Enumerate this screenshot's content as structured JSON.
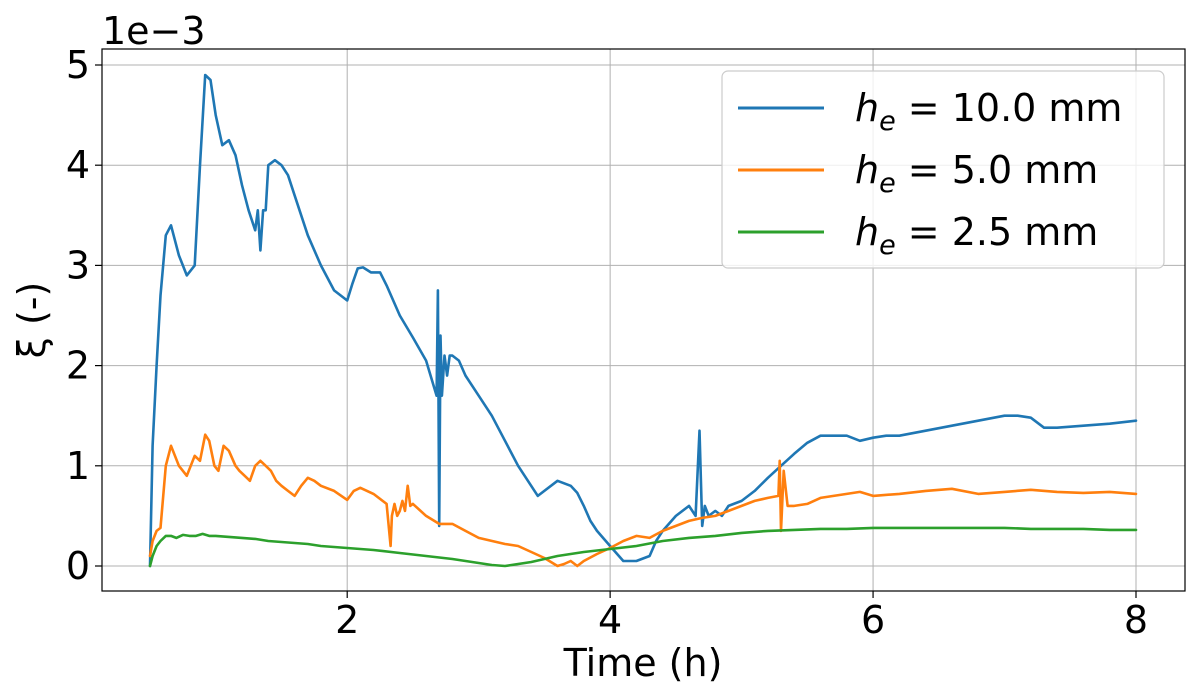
{
  "chart_data": {
    "type": "line",
    "title": "",
    "xlabel": "Time (h)",
    "ylabel": "ξ (-)",
    "offset_label": "1e−3",
    "xlim": [
      0.5,
      8.0
    ],
    "ylim": [
      0,
      5
    ],
    "xticks": [
      2,
      4,
      6,
      8
    ],
    "yticks": [
      0,
      1,
      2,
      3,
      4,
      5
    ],
    "grid": true,
    "legend_position": "top-right",
    "series": [
      {
        "name": "h_e = 10.0 mm",
        "legend_var": "h",
        "legend_sub": "e",
        "legend_rest": " = 10.0 mm",
        "color": "#1f77b4",
        "x": [
          0.5,
          0.52,
          0.55,
          0.58,
          0.62,
          0.66,
          0.72,
          0.78,
          0.84,
          0.88,
          0.92,
          0.96,
          1.0,
          1.05,
          1.1,
          1.15,
          1.2,
          1.25,
          1.3,
          1.32,
          1.34,
          1.36,
          1.38,
          1.4,
          1.45,
          1.5,
          1.55,
          1.6,
          1.7,
          1.8,
          1.9,
          2.0,
          2.04,
          2.08,
          2.12,
          2.18,
          2.25,
          2.3,
          2.4,
          2.5,
          2.6,
          2.68,
          2.69,
          2.7,
          2.71,
          2.72,
          2.74,
          2.76,
          2.78,
          2.8,
          2.85,
          2.9,
          3.0,
          3.1,
          3.2,
          3.3,
          3.45,
          3.6,
          3.7,
          3.75,
          3.8,
          3.85,
          3.9,
          4.0,
          4.1,
          4.2,
          4.3,
          4.35,
          4.4,
          4.5,
          4.6,
          4.65,
          4.68,
          4.7,
          4.72,
          4.75,
          4.8,
          4.85,
          4.9,
          5.0,
          5.1,
          5.2,
          5.3,
          5.4,
          5.5,
          5.6,
          5.7,
          5.8,
          5.9,
          6.0,
          6.1,
          6.2,
          6.4,
          6.6,
          6.8,
          7.0,
          7.1,
          7.2,
          7.3,
          7.4,
          7.6,
          7.8,
          8.0
        ],
        "y": [
          0.0,
          1.2,
          2.0,
          2.7,
          3.3,
          3.4,
          3.1,
          2.9,
          3.0,
          4.0,
          4.9,
          4.85,
          4.5,
          4.2,
          4.25,
          4.1,
          3.8,
          3.55,
          3.35,
          3.55,
          3.15,
          3.55,
          3.55,
          4.0,
          4.05,
          4.0,
          3.9,
          3.7,
          3.3,
          3.0,
          2.75,
          2.65,
          2.82,
          2.97,
          2.98,
          2.93,
          2.93,
          2.8,
          2.5,
          2.28,
          2.05,
          1.7,
          2.75,
          0.4,
          2.3,
          1.7,
          2.1,
          1.9,
          2.1,
          2.1,
          2.05,
          1.9,
          1.7,
          1.5,
          1.25,
          1.0,
          0.7,
          0.85,
          0.8,
          0.73,
          0.6,
          0.45,
          0.35,
          0.2,
          0.05,
          0.05,
          0.1,
          0.25,
          0.35,
          0.5,
          0.6,
          0.5,
          1.35,
          0.4,
          0.6,
          0.5,
          0.55,
          0.5,
          0.6,
          0.65,
          0.75,
          0.88,
          1.0,
          1.12,
          1.23,
          1.3,
          1.3,
          1.3,
          1.25,
          1.28,
          1.3,
          1.3,
          1.35,
          1.4,
          1.45,
          1.5,
          1.5,
          1.48,
          1.38,
          1.38,
          1.4,
          1.42,
          1.45
        ]
      },
      {
        "name": "h_e = 5.0 mm",
        "legend_var": "h",
        "legend_sub": "e",
        "legend_rest": " = 5.0 mm",
        "color": "#ff7f0e",
        "x": [
          0.5,
          0.52,
          0.55,
          0.58,
          0.62,
          0.66,
          0.72,
          0.78,
          0.84,
          0.88,
          0.92,
          0.95,
          0.99,
          1.02,
          1.06,
          1.1,
          1.15,
          1.18,
          1.22,
          1.26,
          1.3,
          1.34,
          1.38,
          1.42,
          1.46,
          1.5,
          1.55,
          1.6,
          1.65,
          1.7,
          1.75,
          1.8,
          1.9,
          2.0,
          2.05,
          2.1,
          2.2,
          2.3,
          2.33,
          2.34,
          2.36,
          2.38,
          2.4,
          2.42,
          2.44,
          2.46,
          2.48,
          2.5,
          2.6,
          2.7,
          2.8,
          2.9,
          3.0,
          3.2,
          3.3,
          3.4,
          3.5,
          3.6,
          3.65,
          3.7,
          3.75,
          3.8,
          3.9,
          4.0,
          4.1,
          4.2,
          4.3,
          4.4,
          4.5,
          4.6,
          4.7,
          4.8,
          4.9,
          5.0,
          5.1,
          5.2,
          5.28,
          5.29,
          5.3,
          5.32,
          5.35,
          5.4,
          5.5,
          5.6,
          5.7,
          5.8,
          5.9,
          6.0,
          6.2,
          6.4,
          6.6,
          6.8,
          7.0,
          7.2,
          7.4,
          7.6,
          7.8,
          8.0
        ],
        "y": [
          0.1,
          0.25,
          0.35,
          0.38,
          1.0,
          1.2,
          1.0,
          0.9,
          1.1,
          1.05,
          1.31,
          1.25,
          1.0,
          0.95,
          1.2,
          1.15,
          1.0,
          0.95,
          0.9,
          0.85,
          1.0,
          1.05,
          1.0,
          0.95,
          0.85,
          0.8,
          0.75,
          0.7,
          0.8,
          0.88,
          0.85,
          0.8,
          0.75,
          0.66,
          0.75,
          0.78,
          0.72,
          0.62,
          0.2,
          0.5,
          0.62,
          0.5,
          0.55,
          0.65,
          0.55,
          0.8,
          0.6,
          0.62,
          0.5,
          0.42,
          0.42,
          0.35,
          0.28,
          0.22,
          0.2,
          0.14,
          0.08,
          0.0,
          0.02,
          0.05,
          0.0,
          0.05,
          0.12,
          0.18,
          0.25,
          0.3,
          0.28,
          0.35,
          0.4,
          0.45,
          0.48,
          0.5,
          0.55,
          0.6,
          0.65,
          0.68,
          0.7,
          1.05,
          0.35,
          0.95,
          0.6,
          0.6,
          0.62,
          0.68,
          0.7,
          0.72,
          0.74,
          0.7,
          0.72,
          0.75,
          0.77,
          0.72,
          0.74,
          0.76,
          0.74,
          0.73,
          0.74,
          0.72
        ]
      },
      {
        "name": "h_e = 2.5 mm",
        "legend_var": "h",
        "legend_sub": "e",
        "legend_rest": " = 2.5 mm",
        "color": "#2ca02c",
        "x": [
          0.5,
          0.52,
          0.55,
          0.58,
          0.62,
          0.66,
          0.7,
          0.75,
          0.8,
          0.85,
          0.9,
          0.95,
          1.0,
          1.1,
          1.2,
          1.3,
          1.4,
          1.5,
          1.6,
          1.7,
          1.8,
          1.9,
          2.0,
          2.2,
          2.4,
          2.6,
          2.8,
          3.0,
          3.1,
          3.2,
          3.4,
          3.6,
          3.8,
          4.0,
          4.2,
          4.4,
          4.6,
          4.8,
          5.0,
          5.2,
          5.4,
          5.6,
          5.8,
          6.0,
          6.2,
          6.4,
          6.6,
          6.8,
          7.0,
          7.2,
          7.4,
          7.6,
          7.8,
          8.0
        ],
        "y": [
          0.0,
          0.1,
          0.2,
          0.25,
          0.3,
          0.3,
          0.28,
          0.31,
          0.3,
          0.3,
          0.32,
          0.3,
          0.3,
          0.29,
          0.28,
          0.27,
          0.25,
          0.24,
          0.23,
          0.22,
          0.2,
          0.19,
          0.18,
          0.16,
          0.13,
          0.1,
          0.07,
          0.03,
          0.01,
          0.0,
          0.04,
          0.1,
          0.14,
          0.17,
          0.2,
          0.25,
          0.28,
          0.3,
          0.33,
          0.35,
          0.36,
          0.37,
          0.37,
          0.38,
          0.38,
          0.38,
          0.38,
          0.38,
          0.38,
          0.37,
          0.37,
          0.37,
          0.36,
          0.36
        ]
      }
    ]
  }
}
